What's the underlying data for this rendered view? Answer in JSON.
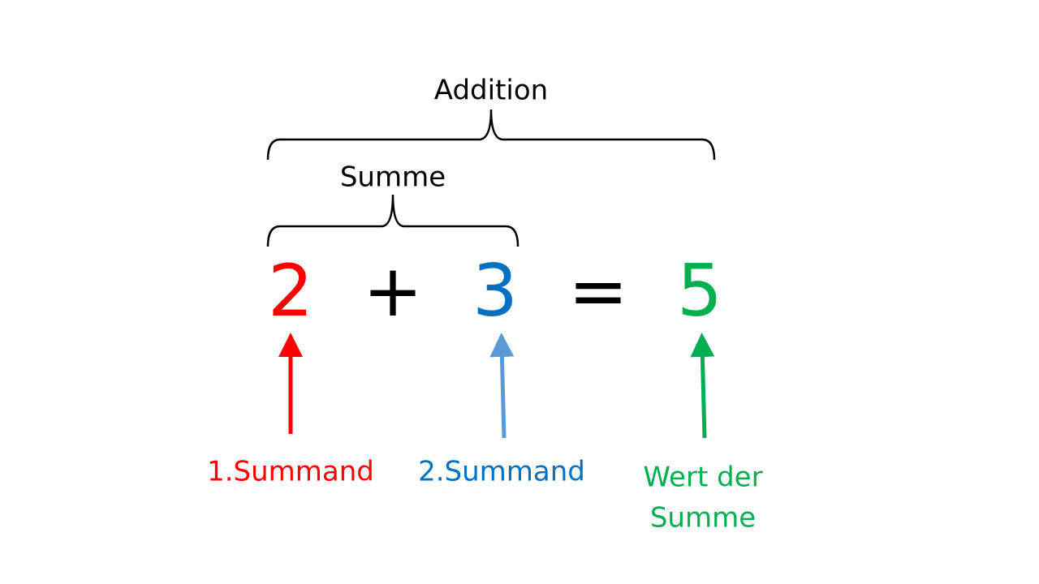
{
  "header": {
    "outer_label": "Addition",
    "inner_label": "Summe"
  },
  "equation": {
    "first": "2",
    "plus": "+",
    "second": "3",
    "equals": "=",
    "result": "5"
  },
  "labels": {
    "first": "1.Summand",
    "second": "2.Summand",
    "result": [
      "Wert der",
      "Summe"
    ]
  }
}
